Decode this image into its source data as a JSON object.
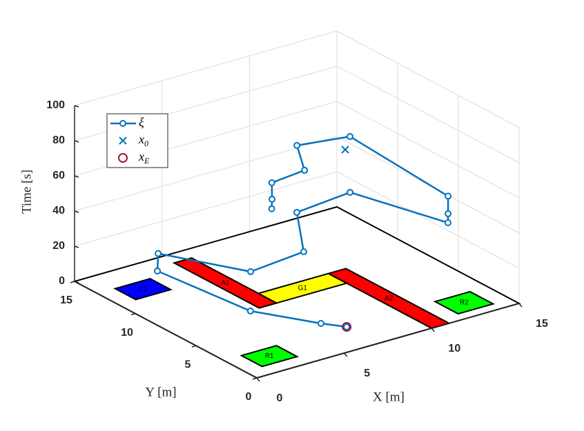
{
  "chart_data": {
    "type": "line3d",
    "xlabel": "X [m]",
    "ylabel": "Y [m]",
    "zlabel": "Time [s]",
    "xlim": [
      0,
      15
    ],
    "ylim": [
      0,
      15
    ],
    "zlim": [
      0,
      100
    ],
    "xticks": [
      0,
      5,
      10,
      15
    ],
    "yticks": [
      0,
      5,
      10,
      15
    ],
    "zticks": [
      0,
      20,
      40,
      60,
      80,
      100
    ],
    "grid": true,
    "legend": "upper left",
    "series": [
      {
        "name": "ξ",
        "color": "#0072bd",
        "marker": "o",
        "x": [
          6.93,
          5.6,
          3.23,
          1.96,
          1.98,
          3.53,
          6.29,
          8.18,
          11.32,
          12.46,
          12.48,
          12.48,
          12.4,
          9.18,
          7.1,
          4.39,
          4.47,
          4.41
        ],
        "y": [
          2.58,
          2.78,
          5.17,
          11.0,
          10.97,
          5.59,
          5.19,
          8.48,
          8.62,
          2.2,
          2.22,
          2.22,
          10.18,
          9.91,
          6.29,
          5.08,
          5.18,
          5.12
        ],
        "z": [
          0,
          5,
          10,
          15,
          25,
          30,
          35,
          40,
          42,
          45,
          50,
          60,
          65,
          70,
          75,
          80,
          70,
          65
        ]
      },
      {
        "name": "x_0",
        "color": "#0072bd",
        "marker": "x",
        "x": [
          8.21
        ],
        "y": [
          4.54
        ],
        "z": [
          90
        ]
      },
      {
        "name": "x_E",
        "color": "#a2142f",
        "marker": "o",
        "x": [
          6.93
        ],
        "y": [
          2.58
        ],
        "z": [
          0
        ]
      }
    ],
    "regions": [
      {
        "label": "R1",
        "color": "#00ff00",
        "x": [
          1,
          3
        ],
        "y": [
          1,
          2.7
        ]
      },
      {
        "label": "R2",
        "color": "#00ff00",
        "x": [
          12,
          14
        ],
        "y": [
          0.7,
          2.6
        ]
      },
      {
        "label": "C1",
        "color": "#0000ff",
        "x": [
          1,
          3
        ],
        "y": [
          11.4,
          13.1
        ]
      },
      {
        "label": "A1",
        "color": "#ff0000",
        "x": [
          5,
          6
        ],
        "y": [
          7,
          14
        ]
      },
      {
        "label": "G1",
        "color": "#ffff00",
        "x": [
          6,
          10
        ],
        "y": [
          7,
          8.5
        ]
      },
      {
        "label": "A2",
        "color": "#ff0000",
        "x": [
          10,
          11
        ],
        "y": [
          0,
          8.5
        ]
      }
    ]
  }
}
